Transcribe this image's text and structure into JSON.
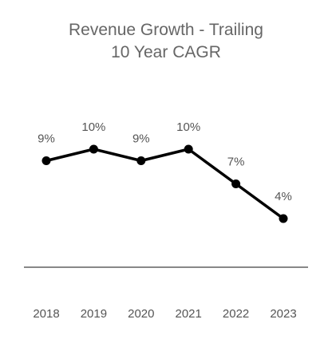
{
  "chart_data": {
    "type": "line",
    "title_line1": "Revenue Growth - Trailing",
    "title_line2": "10 Year CAGR",
    "categories": [
      "2018",
      "2019",
      "2020",
      "2021",
      "2022",
      "2023"
    ],
    "series": [
      {
        "values": [
          9,
          10,
          9,
          10,
          7,
          4
        ],
        "labels": [
          "9%",
          "10%",
          "9%",
          "10%",
          "7%",
          "4%"
        ]
      }
    ],
    "grid": false,
    "legend": "none",
    "line_color": "#000000",
    "axis_color": "#888888",
    "text_color": "#555555"
  }
}
